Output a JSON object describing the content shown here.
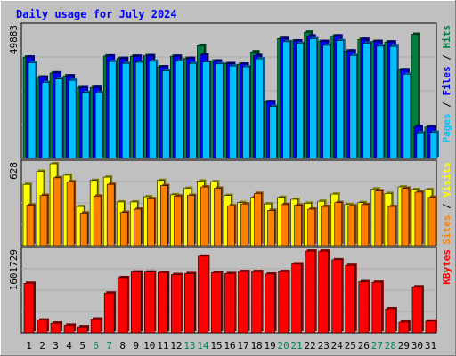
{
  "chart_data": {
    "title": "Daily usage for July 2024",
    "days": [
      "1",
      "2",
      "3",
      "4",
      "5",
      "6",
      "7",
      "8",
      "9",
      "10",
      "11",
      "12",
      "13",
      "14",
      "15",
      "16",
      "17",
      "18",
      "19",
      "20",
      "21",
      "22",
      "23",
      "24",
      "25",
      "26",
      "27",
      "28",
      "29",
      "30",
      "31"
    ],
    "weekend_days": [
      "6",
      "7",
      "13",
      "14",
      "20",
      "21",
      "27",
      "28"
    ],
    "panels": [
      {
        "type": "bar",
        "ymax_label": "49883",
        "ymax": 49883,
        "legend": [
          {
            "name": "Hits",
            "color": "#008040"
          },
          {
            "name": "Files",
            "color": "#0000ff"
          },
          {
            "name": "Pages",
            "color": "#00c0ff"
          }
        ],
        "series": [
          {
            "name": "Hits",
            "values": [
              38400,
              30800,
              32400,
              31300,
              26800,
              26900,
              38800,
              37900,
              38700,
              38900,
              34700,
              38700,
              37900,
              42700,
              36900,
              35900,
              35700,
              40400,
              21500,
              45400,
              44500,
              47800,
              44300,
              46400,
              40700,
              45100,
              44300,
              44100,
              33600,
              47000,
              11900
            ]
          },
          {
            "name": "Files",
            "values": [
              38400,
              30800,
              32400,
              31300,
              26800,
              26900,
              38800,
              37900,
              38700,
              38900,
              34700,
              38700,
              37900,
              39200,
              36900,
              35900,
              35700,
              39000,
              21500,
              45400,
              44500,
              46400,
              44300,
              46400,
              40700,
              45100,
              44300,
              44100,
              33600,
              12100,
              11900
            ]
          },
          {
            "name": "Pages",
            "values": [
              36200,
              28800,
              30100,
              29600,
              25000,
              24900,
              36700,
              36000,
              36400,
              36800,
              33200,
              36900,
              36000,
              36500,
              35800,
              35000,
              34700,
              37700,
              19700,
              44200,
              43500,
              45300,
              42800,
              44600,
              39000,
              43600,
              42500,
              42400,
              31900,
              9700,
              9900
            ]
          }
        ]
      },
      {
        "type": "bar",
        "ymax_label": "628",
        "ymax": 628,
        "legend": [
          {
            "name": "Visits",
            "color": "#ffff00"
          },
          {
            "name": "Sites",
            "color": "#ff8000"
          }
        ],
        "series": [
          {
            "name": "Visits",
            "values": [
              470,
              570,
              628,
              540,
              300,
              500,
              525,
              335,
              335,
              375,
              500,
              390,
              440,
              495,
              490,
              385,
              330,
              370,
              320,
              370,
              355,
              325,
              340,
              395,
              315,
              330,
              435,
              400,
              450,
              430,
              430
            ]
          },
          {
            "name": "Sites",
            "values": [
              310,
              385,
              520,
              490,
              250,
              380,
              470,
              255,
              280,
              360,
              460,
              380,
              385,
              450,
              440,
              305,
              320,
              400,
              270,
              315,
              310,
              280,
              300,
              330,
              305,
              315,
              420,
              300,
              440,
              410,
              370
            ]
          }
        ]
      },
      {
        "type": "bar",
        "ymax_label": "1601729",
        "ymax": 1601729,
        "legend": [
          {
            "name": "KBytes",
            "color": "#ff0000"
          }
        ],
        "series": [
          {
            "name": "KBytes",
            "values": [
              970000,
              250000,
              190000,
              150000,
              120000,
              270000,
              780000,
              1080000,
              1190000,
              1190000,
              1180000,
              1140000,
              1160000,
              1500000,
              1180000,
              1160000,
              1200000,
              1200000,
              1150000,
              1200000,
              1350000,
              1600000,
              1600000,
              1430000,
              1320000,
              1000000,
              990000,
              470000,
              210000,
              900000,
              230000
            ]
          }
        ]
      }
    ],
    "colors": {
      "background": "#c0c0c0",
      "plot_background": "#c0c0c0",
      "title": "#0000ff",
      "weekday_label": "#000000",
      "weekend_label": "#00805c"
    }
  }
}
